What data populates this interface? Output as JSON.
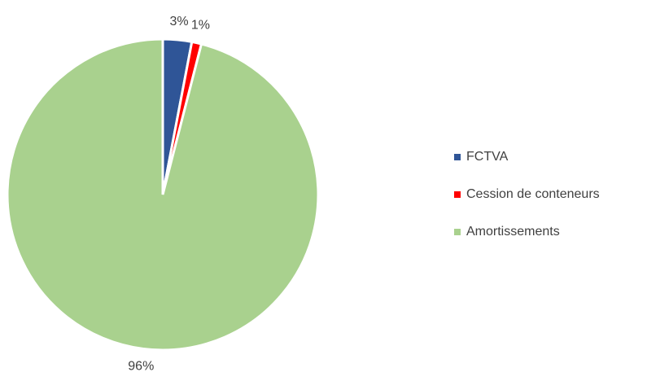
{
  "chart_data": {
    "type": "pie",
    "categories": [
      "FCTVA",
      "Cession de conteneurs",
      "Amortissements"
    ],
    "values": [
      3,
      1,
      96
    ],
    "value_labels": [
      "3%",
      "1%",
      "96%"
    ],
    "colors": [
      "#2f5597",
      "#ff0000",
      "#a9d18e"
    ],
    "legend": "right"
  }
}
